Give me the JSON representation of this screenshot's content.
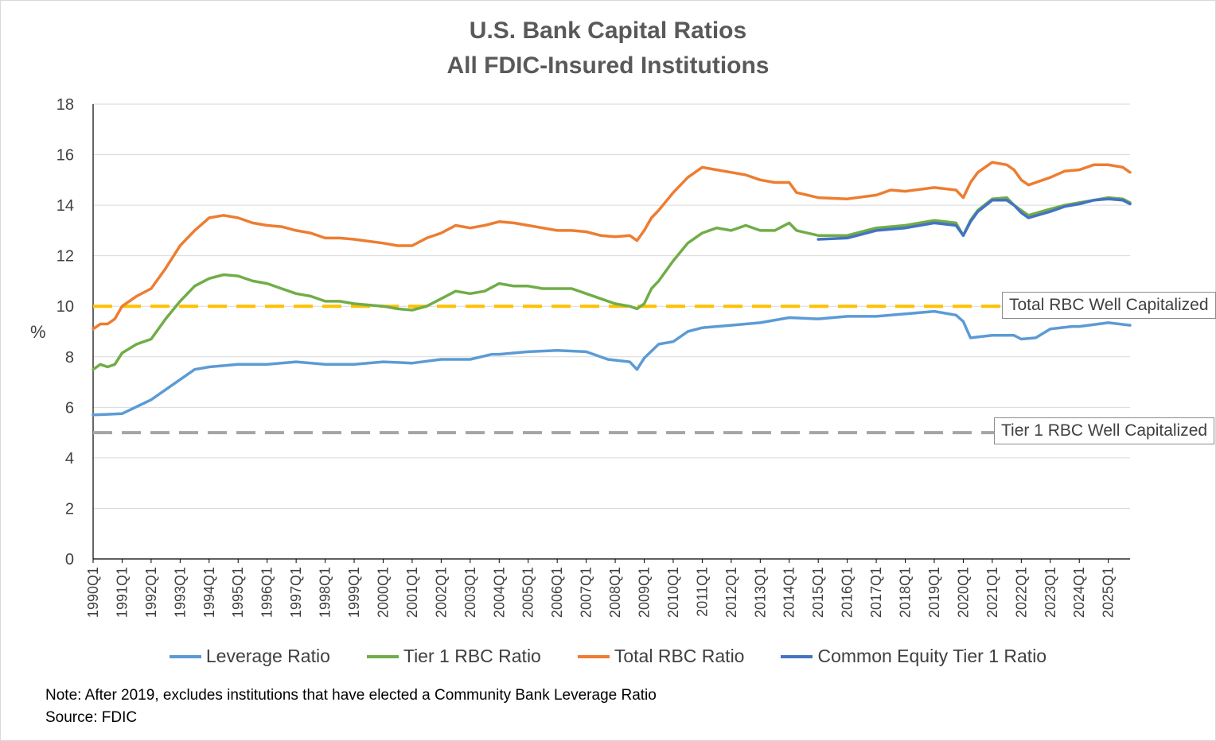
{
  "title_line1": "U.S. Bank Capital Ratios",
  "title_line2": "All FDIC-Insured Institutions",
  "note": "Note: After 2019, excludes institutions that have elected a Community Bank Leverage Ratio",
  "source": "Source: FDIC",
  "chart_data": {
    "type": "line",
    "ylabel": "%",
    "ylim": [
      0,
      18
    ],
    "yticks": [
      0,
      2,
      4,
      6,
      8,
      10,
      12,
      14,
      16,
      18
    ],
    "x_start": "1990Q1",
    "x_end": "2025Q4",
    "xtick_labels": [
      "1990Q1",
      "1991Q1",
      "1992Q1",
      "1993Q1",
      "1994Q1",
      "1995Q1",
      "1996Q1",
      "1997Q1",
      "1998Q1",
      "1999Q1",
      "2000Q1",
      "2001Q1",
      "2002Q1",
      "2003Q1",
      "2004Q1",
      "2005Q1",
      "2006Q1",
      "2007Q1",
      "2008Q1",
      "2009Q1",
      "2010Q1",
      "2011Q1",
      "2012Q1",
      "2013Q1",
      "2014Q1",
      "2015Q1",
      "2016Q1",
      "2017Q1",
      "2018Q1",
      "2019Q1",
      "2020Q1",
      "2021Q1",
      "2022Q1",
      "2023Q1",
      "2024Q1",
      "2025Q1"
    ],
    "series": [
      {
        "name": "Leverage Ratio",
        "color": "#5B9BD5",
        "points": [
          [
            1990.0,
            5.7
          ],
          [
            1991.0,
            5.75
          ],
          [
            1992.0,
            6.3
          ],
          [
            1993.0,
            7.1
          ],
          [
            1993.5,
            7.5
          ],
          [
            1994.0,
            7.6
          ],
          [
            1995.0,
            7.7
          ],
          [
            1996.0,
            7.7
          ],
          [
            1997.0,
            7.8
          ],
          [
            1998.0,
            7.7
          ],
          [
            1999.0,
            7.7
          ],
          [
            2000.0,
            7.8
          ],
          [
            2001.0,
            7.75
          ],
          [
            2002.0,
            7.9
          ],
          [
            2003.0,
            7.9
          ],
          [
            2003.75,
            8.1
          ],
          [
            2004.0,
            8.1
          ],
          [
            2005.0,
            8.2
          ],
          [
            2006.0,
            8.25
          ],
          [
            2007.0,
            8.2
          ],
          [
            2007.75,
            7.9
          ],
          [
            2008.5,
            7.8
          ],
          [
            2008.75,
            7.5
          ],
          [
            2009.0,
            7.95
          ],
          [
            2009.5,
            8.5
          ],
          [
            2010.0,
            8.6
          ],
          [
            2010.5,
            9.0
          ],
          [
            2011.0,
            9.15
          ],
          [
            2012.0,
            9.25
          ],
          [
            2013.0,
            9.35
          ],
          [
            2014.0,
            9.55
          ],
          [
            2015.0,
            9.5
          ],
          [
            2016.0,
            9.6
          ],
          [
            2017.0,
            9.6
          ],
          [
            2018.0,
            9.7
          ],
          [
            2019.0,
            9.8
          ],
          [
            2019.75,
            9.65
          ],
          [
            2020.0,
            9.4
          ],
          [
            2020.25,
            8.75
          ],
          [
            2021.0,
            8.85
          ],
          [
            2021.75,
            8.85
          ],
          [
            2022.0,
            8.7
          ],
          [
            2022.5,
            8.75
          ],
          [
            2023.0,
            9.1
          ],
          [
            2023.75,
            9.2
          ],
          [
            2024.0,
            9.2
          ],
          [
            2025.0,
            9.35
          ],
          [
            2025.75,
            9.25
          ]
        ]
      },
      {
        "name": "Tier 1 RBC Ratio",
        "color": "#70AD47",
        "points": [
          [
            1990.0,
            7.5
          ],
          [
            1990.25,
            7.7
          ],
          [
            1990.5,
            7.6
          ],
          [
            1990.75,
            7.7
          ],
          [
            1991.0,
            8.15
          ],
          [
            1991.5,
            8.5
          ],
          [
            1992.0,
            8.7
          ],
          [
            1992.5,
            9.5
          ],
          [
            1993.0,
            10.2
          ],
          [
            1993.5,
            10.8
          ],
          [
            1994.0,
            11.1
          ],
          [
            1994.5,
            11.25
          ],
          [
            1995.0,
            11.2
          ],
          [
            1995.5,
            11.0
          ],
          [
            1996.0,
            10.9
          ],
          [
            1996.5,
            10.7
          ],
          [
            1997.0,
            10.5
          ],
          [
            1997.5,
            10.4
          ],
          [
            1998.0,
            10.2
          ],
          [
            1998.5,
            10.2
          ],
          [
            1999.0,
            10.1
          ],
          [
            2000.0,
            10.0
          ],
          [
            2000.5,
            9.9
          ],
          [
            2001.0,
            9.85
          ],
          [
            2001.5,
            10.0
          ],
          [
            2002.0,
            10.3
          ],
          [
            2002.5,
            10.6
          ],
          [
            2003.0,
            10.5
          ],
          [
            2003.5,
            10.6
          ],
          [
            2004.0,
            10.9
          ],
          [
            2004.5,
            10.8
          ],
          [
            2005.0,
            10.8
          ],
          [
            2005.5,
            10.7
          ],
          [
            2006.0,
            10.7
          ],
          [
            2006.5,
            10.7
          ],
          [
            2007.0,
            10.5
          ],
          [
            2007.5,
            10.3
          ],
          [
            2008.0,
            10.1
          ],
          [
            2008.5,
            10.0
          ],
          [
            2008.75,
            9.9
          ],
          [
            2009.0,
            10.1
          ],
          [
            2009.25,
            10.7
          ],
          [
            2009.5,
            11.0
          ],
          [
            2010.0,
            11.8
          ],
          [
            2010.5,
            12.5
          ],
          [
            2011.0,
            12.9
          ],
          [
            2011.5,
            13.1
          ],
          [
            2012.0,
            13.0
          ],
          [
            2012.5,
            13.2
          ],
          [
            2013.0,
            13.0
          ],
          [
            2013.5,
            13.0
          ],
          [
            2014.0,
            13.3
          ],
          [
            2014.25,
            13.0
          ],
          [
            2015.0,
            12.8
          ],
          [
            2016.0,
            12.8
          ],
          [
            2017.0,
            13.1
          ],
          [
            2018.0,
            13.2
          ],
          [
            2019.0,
            13.4
          ],
          [
            2019.75,
            13.3
          ],
          [
            2020.0,
            12.8
          ],
          [
            2020.25,
            13.4
          ],
          [
            2020.5,
            13.8
          ],
          [
            2021.0,
            14.25
          ],
          [
            2021.5,
            14.3
          ],
          [
            2021.75,
            14.0
          ],
          [
            2022.0,
            13.8
          ],
          [
            2022.25,
            13.6
          ],
          [
            2023.0,
            13.85
          ],
          [
            2023.5,
            14.0
          ],
          [
            2024.0,
            14.1
          ],
          [
            2024.5,
            14.2
          ],
          [
            2025.0,
            14.3
          ],
          [
            2025.5,
            14.25
          ],
          [
            2025.75,
            14.1
          ]
        ]
      },
      {
        "name": "Total RBC Ratio",
        "color": "#ED7D31",
        "points": [
          [
            1990.0,
            9.1
          ],
          [
            1990.25,
            9.3
          ],
          [
            1990.5,
            9.3
          ],
          [
            1990.75,
            9.5
          ],
          [
            1991.0,
            10.0
          ],
          [
            1991.5,
            10.4
          ],
          [
            1992.0,
            10.7
          ],
          [
            1992.5,
            11.5
          ],
          [
            1993.0,
            12.4
          ],
          [
            1993.5,
            13.0
          ],
          [
            1994.0,
            13.5
          ],
          [
            1994.5,
            13.6
          ],
          [
            1995.0,
            13.5
          ],
          [
            1995.5,
            13.3
          ],
          [
            1996.0,
            13.2
          ],
          [
            1996.5,
            13.15
          ],
          [
            1997.0,
            13.0
          ],
          [
            1997.5,
            12.9
          ],
          [
            1998.0,
            12.7
          ],
          [
            1998.5,
            12.7
          ],
          [
            1999.0,
            12.65
          ],
          [
            2000.0,
            12.5
          ],
          [
            2000.5,
            12.4
          ],
          [
            2001.0,
            12.4
          ],
          [
            2001.5,
            12.7
          ],
          [
            2002.0,
            12.9
          ],
          [
            2002.5,
            13.2
          ],
          [
            2003.0,
            13.1
          ],
          [
            2003.5,
            13.2
          ],
          [
            2004.0,
            13.35
          ],
          [
            2004.5,
            13.3
          ],
          [
            2005.0,
            13.2
          ],
          [
            2005.5,
            13.1
          ],
          [
            2006.0,
            13.0
          ],
          [
            2006.5,
            13.0
          ],
          [
            2007.0,
            12.95
          ],
          [
            2007.5,
            12.8
          ],
          [
            2008.0,
            12.75
          ],
          [
            2008.5,
            12.8
          ],
          [
            2008.75,
            12.6
          ],
          [
            2009.0,
            13.0
          ],
          [
            2009.25,
            13.5
          ],
          [
            2009.5,
            13.8
          ],
          [
            2010.0,
            14.5
          ],
          [
            2010.5,
            15.1
          ],
          [
            2011.0,
            15.5
          ],
          [
            2011.5,
            15.4
          ],
          [
            2012.0,
            15.3
          ],
          [
            2012.5,
            15.2
          ],
          [
            2013.0,
            15.0
          ],
          [
            2013.5,
            14.9
          ],
          [
            2014.0,
            14.9
          ],
          [
            2014.25,
            14.5
          ],
          [
            2015.0,
            14.3
          ],
          [
            2016.0,
            14.25
          ],
          [
            2017.0,
            14.4
          ],
          [
            2017.5,
            14.6
          ],
          [
            2018.0,
            14.55
          ],
          [
            2019.0,
            14.7
          ],
          [
            2019.75,
            14.6
          ],
          [
            2020.0,
            14.3
          ],
          [
            2020.25,
            14.9
          ],
          [
            2020.5,
            15.3
          ],
          [
            2021.0,
            15.7
          ],
          [
            2021.5,
            15.6
          ],
          [
            2021.75,
            15.4
          ],
          [
            2022.0,
            15.0
          ],
          [
            2022.25,
            14.8
          ],
          [
            2023.0,
            15.1
          ],
          [
            2023.5,
            15.35
          ],
          [
            2024.0,
            15.4
          ],
          [
            2024.5,
            15.6
          ],
          [
            2025.0,
            15.6
          ],
          [
            2025.5,
            15.5
          ],
          [
            2025.75,
            15.3
          ]
        ]
      },
      {
        "name": "Common Equity Tier 1 Ratio",
        "color": "#4472C4",
        "points": [
          [
            2015.0,
            12.65
          ],
          [
            2016.0,
            12.7
          ],
          [
            2017.0,
            13.0
          ],
          [
            2018.0,
            13.1
          ],
          [
            2019.0,
            13.3
          ],
          [
            2019.75,
            13.2
          ],
          [
            2020.0,
            12.8
          ],
          [
            2020.25,
            13.35
          ],
          [
            2020.5,
            13.75
          ],
          [
            2021.0,
            14.2
          ],
          [
            2021.5,
            14.2
          ],
          [
            2021.75,
            14.0
          ],
          [
            2022.0,
            13.7
          ],
          [
            2022.25,
            13.5
          ],
          [
            2023.0,
            13.75
          ],
          [
            2023.5,
            13.95
          ],
          [
            2024.0,
            14.05
          ],
          [
            2024.5,
            14.2
          ],
          [
            2025.0,
            14.25
          ],
          [
            2025.5,
            14.2
          ],
          [
            2025.75,
            14.05
          ]
        ]
      }
    ],
    "reference_lines": [
      {
        "name": "Total RBC Well Capitalized",
        "value": 10,
        "color": "#FFC000",
        "label": "Total RBC Well Capitalized"
      },
      {
        "name": "Tier 1 RBC Well Capitalized",
        "value": 5,
        "color": "#A5A5A5",
        "label": "Tier 1 RBC Well Capitalized"
      }
    ],
    "grid": "horizontal",
    "legend_position": "bottom"
  }
}
